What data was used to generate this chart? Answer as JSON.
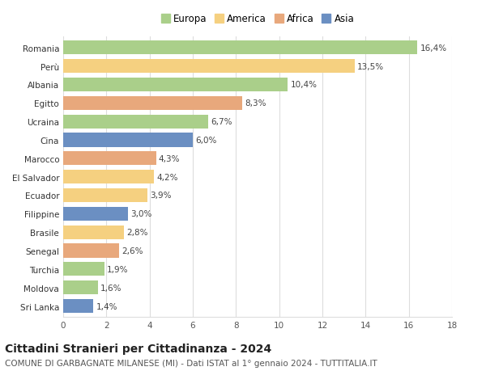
{
  "countries": [
    "Romania",
    "Perù",
    "Albania",
    "Egitto",
    "Ucraina",
    "Cina",
    "Marocco",
    "El Salvador",
    "Ecuador",
    "Filippine",
    "Brasile",
    "Senegal",
    "Turchia",
    "Moldova",
    "Sri Lanka"
  ],
  "values": [
    16.4,
    13.5,
    10.4,
    8.3,
    6.7,
    6.0,
    4.3,
    4.2,
    3.9,
    3.0,
    2.8,
    2.6,
    1.9,
    1.6,
    1.4
  ],
  "labels": [
    "16,4%",
    "13,5%",
    "10,4%",
    "8,3%",
    "6,7%",
    "6,0%",
    "4,3%",
    "4,2%",
    "3,9%",
    "3,0%",
    "2,8%",
    "2,6%",
    "1,9%",
    "1,6%",
    "1,4%"
  ],
  "continents": [
    "Europa",
    "America",
    "Europa",
    "Africa",
    "Europa",
    "Asia",
    "Africa",
    "America",
    "America",
    "Asia",
    "America",
    "Africa",
    "Europa",
    "Europa",
    "Asia"
  ],
  "colors": {
    "Europa": "#aacf8a",
    "America": "#f5d080",
    "Africa": "#e8a87c",
    "Asia": "#6b8fc2"
  },
  "legend_order": [
    "Europa",
    "America",
    "Africa",
    "Asia"
  ],
  "title": "Cittadini Stranieri per Cittadinanza - 2024",
  "subtitle": "COMUNE DI GARBAGNATE MILANESE (MI) - Dati ISTAT al 1° gennaio 2024 - TUTTITALIA.IT",
  "xlim": [
    0,
    18
  ],
  "xticks": [
    0,
    2,
    4,
    6,
    8,
    10,
    12,
    14,
    16,
    18
  ],
  "bg_color": "#ffffff",
  "grid_color": "#dddddd",
  "bar_height": 0.75,
  "title_fontsize": 10,
  "subtitle_fontsize": 7.5,
  "label_fontsize": 7.5,
  "tick_fontsize": 7.5,
  "legend_fontsize": 8.5
}
